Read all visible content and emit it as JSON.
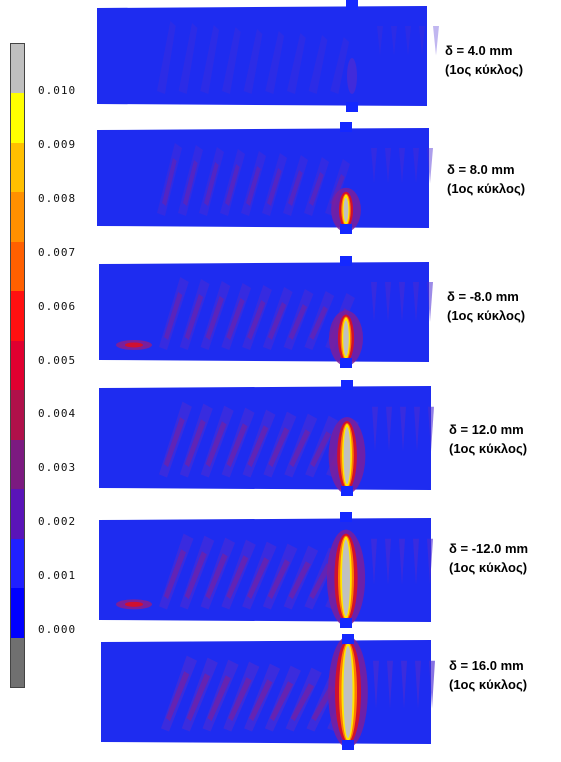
{
  "legend": {
    "colors": [
      "#c0c0c0",
      "#ffff00",
      "#ffc000",
      "#ff9000",
      "#ff6000",
      "#ff1010",
      "#e00030",
      "#b0104a",
      "#7c1a80",
      "#5a14b8",
      "#2020ff",
      "#0000ff",
      "#707070"
    ],
    "ticks": [
      "0.010",
      "0.009",
      "0.008",
      "0.007",
      "0.006",
      "0.005",
      "0.004",
      "0.003",
      "0.002",
      "0.001",
      "0.000"
    ]
  },
  "palette": {
    "background": "#1e2cf0",
    "low": "#4a2cd4",
    "mid": "#7a1f9c",
    "high": "#d01030",
    "hot": "#ff7a00",
    "peak": "#ffe600",
    "crack": "#c0c0c0",
    "marker": "#1428ff"
  },
  "panels": [
    {
      "line1": "δ = 4.0 mm",
      "line2": "(1ος κύκλος)",
      "intensity": 0.15,
      "crack": 0.0,
      "side_spot": false
    },
    {
      "line1": "δ = 8.0 mm",
      "line2": "(1ος κύκλος)",
      "intensity": 0.35,
      "crack": 0.15,
      "side_spot": false
    },
    {
      "line1": "δ = -8.0 mm",
      "line2": "(1ος κύκλος)",
      "intensity": 0.5,
      "crack": 0.3,
      "side_spot": true
    },
    {
      "line1": "δ = 12.0 mm",
      "line2": "(1ος κύκλος)",
      "intensity": 0.6,
      "crack": 0.55,
      "side_spot": false
    },
    {
      "line1": "δ = -12.0 mm",
      "line2": "(1ος κύκλος)",
      "intensity": 0.65,
      "crack": 0.8,
      "side_spot": true
    },
    {
      "line1": "δ = 16.0 mm",
      "line2": "(1ος κύκλος)",
      "intensity": 0.7,
      "crack": 1.0,
      "side_spot": false
    }
  ]
}
